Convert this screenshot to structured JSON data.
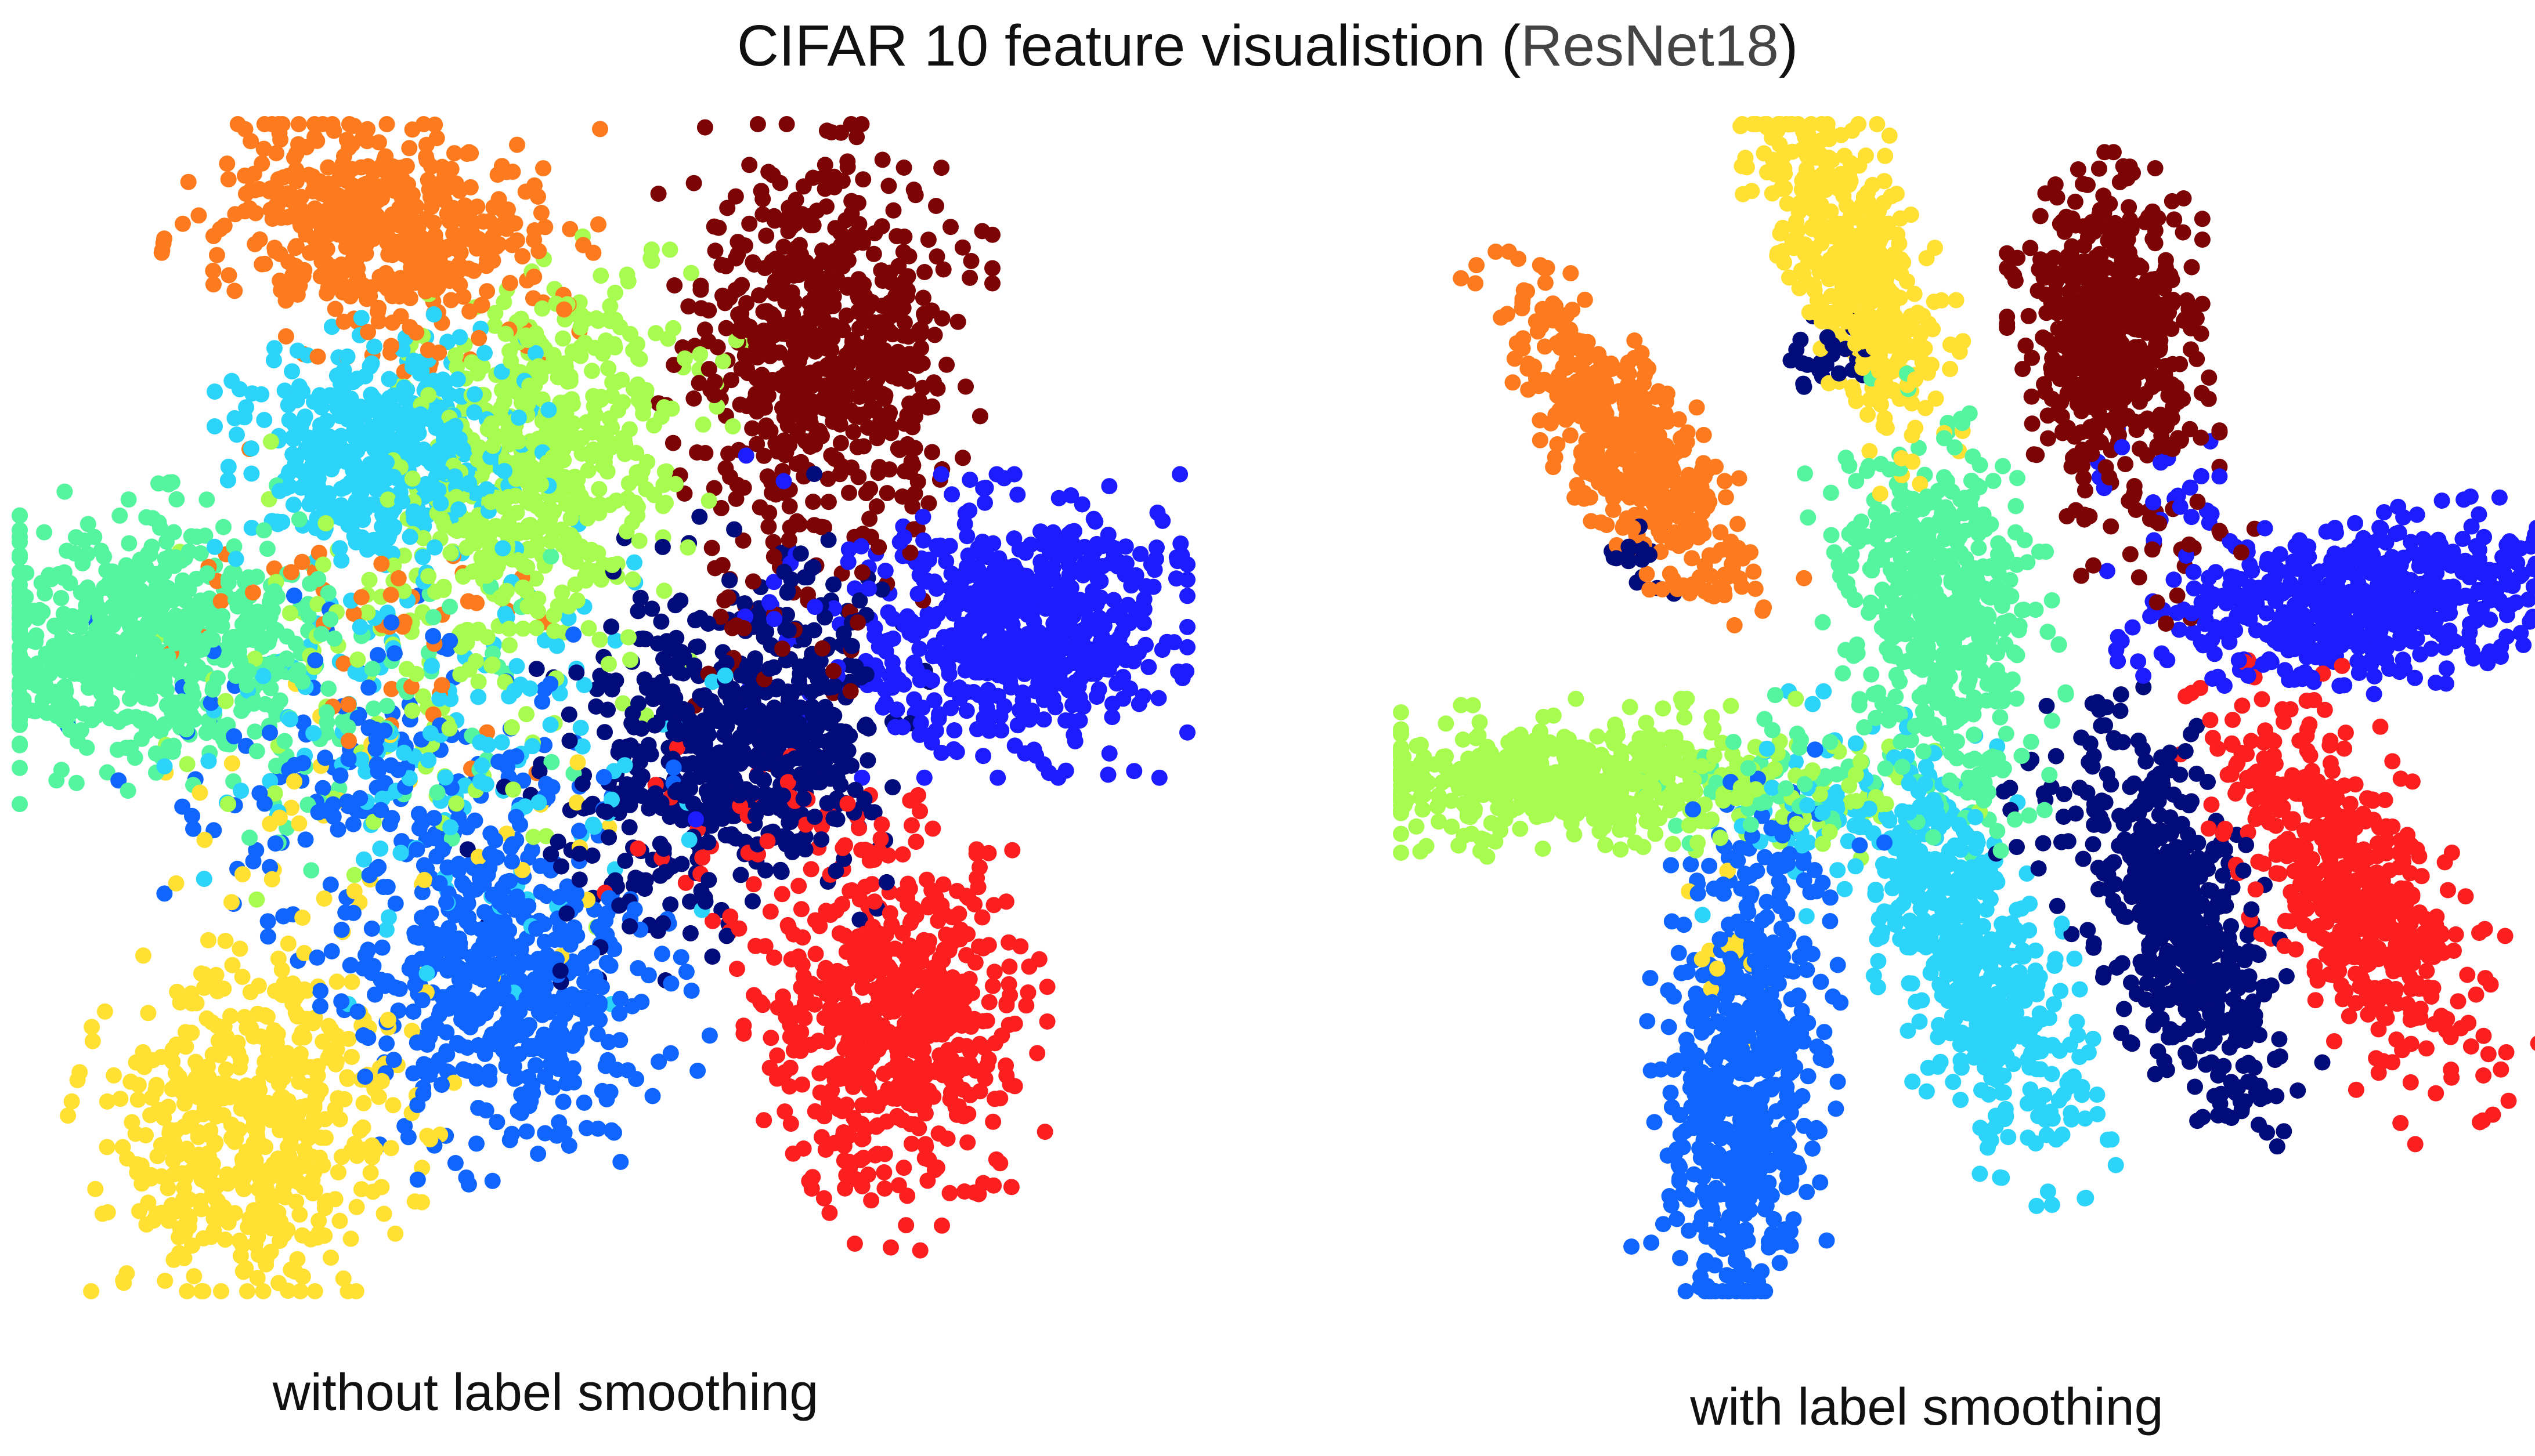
{
  "title": {
    "main": "CIFAR 10 feature visualistion (",
    "sub": "ResNet18",
    "close": ")"
  },
  "chart_data": [
    {
      "type": "scatter",
      "title": "without label smoothing",
      "xlim": [
        0,
        100
      ],
      "ylim": [
        0,
        100
      ],
      "grid": false,
      "legend": "none",
      "colormap": "jet",
      "classes": [
        {
          "id": 0,
          "color": "#020b7a"
        },
        {
          "id": 1,
          "color": "#1c1cff"
        },
        {
          "id": 2,
          "color": "#1065ff"
        },
        {
          "id": 3,
          "color": "#2bd4f8"
        },
        {
          "id": 4,
          "color": "#55f5a0"
        },
        {
          "id": 5,
          "color": "#a8fc50"
        },
        {
          "id": 6,
          "color": "#ffe033"
        },
        {
          "id": 7,
          "color": "#fe7a1e"
        },
        {
          "id": 8,
          "color": "#fc1f1f"
        },
        {
          "id": 9,
          "color": "#7d0404"
        }
      ],
      "clusters": [
        {
          "class": 7,
          "cx": 31,
          "cy": 91,
          "sx": 7,
          "sy": 4.5,
          "rot": -10,
          "n": 520
        },
        {
          "class": 5,
          "cx": 45,
          "cy": 71,
          "sx": 5.5,
          "sy": 8,
          "rot": -20,
          "n": 560
        },
        {
          "class": 3,
          "cx": 31,
          "cy": 72,
          "sx": 5.5,
          "sy": 4.5,
          "rot": 0,
          "n": 480
        },
        {
          "class": 4,
          "cx": 10,
          "cy": 56,
          "sx": 8,
          "sy": 5,
          "rot": 5,
          "n": 620
        },
        {
          "class": 9,
          "cx": 69,
          "cy": 80,
          "sx": 5.5,
          "sy": 8,
          "rot": 0,
          "n": 620
        },
        {
          "class": 1,
          "cx": 85,
          "cy": 57,
          "sx": 6.5,
          "sy": 5,
          "rot": 0,
          "n": 640
        },
        {
          "class": 0,
          "cx": 62,
          "cy": 47,
          "sx": 6,
          "sy": 6.5,
          "rot": -20,
          "n": 560
        },
        {
          "class": 8,
          "cx": 75,
          "cy": 23,
          "sx": 5,
          "sy": 7.5,
          "rot": 0,
          "n": 620
        },
        {
          "class": 2,
          "cx": 41,
          "cy": 26,
          "sx": 6,
          "sy": 7,
          "rot": 20,
          "n": 540
        },
        {
          "class": 6,
          "cx": 20,
          "cy": 14,
          "sx": 6,
          "sy": 7,
          "rot": -15,
          "n": 560
        },
        {
          "class": 3,
          "cx": 36,
          "cy": 48,
          "sx": 11,
          "sy": 9,
          "rot": 0,
          "n": 160
        },
        {
          "class": 2,
          "cx": 30,
          "cy": 44,
          "sx": 10,
          "sy": 6,
          "rot": 0,
          "n": 140
        },
        {
          "class": 5,
          "cx": 34,
          "cy": 52,
          "sx": 9,
          "sy": 8,
          "rot": 0,
          "n": 100
        },
        {
          "class": 4,
          "cx": 28,
          "cy": 50,
          "sx": 9,
          "sy": 6,
          "rot": 0,
          "n": 80
        },
        {
          "class": 7,
          "cx": 30,
          "cy": 58,
          "sx": 8,
          "sy": 6,
          "rot": 0,
          "n": 50
        },
        {
          "class": 6,
          "cx": 30,
          "cy": 38,
          "sx": 9,
          "sy": 6,
          "rot": 0,
          "n": 45
        },
        {
          "class": 0,
          "cx": 52,
          "cy": 40,
          "sx": 7,
          "sy": 7,
          "rot": 0,
          "n": 60
        },
        {
          "class": 9,
          "cx": 66,
          "cy": 60,
          "sx": 4,
          "sy": 6,
          "rot": 0,
          "n": 45
        },
        {
          "class": 8,
          "cx": 63,
          "cy": 37,
          "sx": 5,
          "sy": 5,
          "rot": 0,
          "n": 45
        },
        {
          "class": 1,
          "cx": 67,
          "cy": 56,
          "sx": 4,
          "sy": 6,
          "rot": 0,
          "n": 25
        },
        {
          "class": 0,
          "cx": 68,
          "cy": 57,
          "sx": 3,
          "sy": 6,
          "rot": 0,
          "n": 30
        }
      ]
    },
    {
      "type": "scatter",
      "title": "with label smoothing",
      "xlim": [
        0,
        100
      ],
      "ylim": [
        0,
        100
      ],
      "grid": false,
      "legend": "none",
      "colormap": "jet",
      "classes": [
        {
          "id": 0,
          "color": "#020b7a"
        },
        {
          "id": 1,
          "color": "#1c1cff"
        },
        {
          "id": 2,
          "color": "#1065ff"
        },
        {
          "id": 3,
          "color": "#2bd4f8"
        },
        {
          "id": 4,
          "color": "#55f5a0"
        },
        {
          "id": 5,
          "color": "#a8fc50"
        },
        {
          "id": 6,
          "color": "#ffe033"
        },
        {
          "id": 7,
          "color": "#fe7a1e"
        },
        {
          "id": 8,
          "color": "#fc1f1f"
        },
        {
          "id": 9,
          "color": "#7d0404"
        }
      ],
      "clusters": [
        {
          "class": 6,
          "cx": 39,
          "cy": 88,
          "sx": 2.6,
          "sy": 7.5,
          "rot": 22,
          "n": 480
        },
        {
          "class": 7,
          "cx": 20,
          "cy": 72,
          "sx": 2.5,
          "sy": 8,
          "rot": 35,
          "n": 480
        },
        {
          "class": 9,
          "cx": 61,
          "cy": 82,
          "sx": 3.5,
          "sy": 6,
          "rot": 0,
          "n": 520
        },
        {
          "class": 1,
          "cx": 83,
          "cy": 59,
          "sx": 8.5,
          "sy": 3,
          "rot": 8,
          "n": 560
        },
        {
          "class": 4,
          "cx": 46,
          "cy": 58,
          "sx": 3.8,
          "sy": 8,
          "rot": 8,
          "n": 520
        },
        {
          "class": 5,
          "cx": 14,
          "cy": 44,
          "sx": 10,
          "sy": 2.6,
          "rot": 0,
          "n": 520
        },
        {
          "class": 8,
          "cx": 82,
          "cy": 34,
          "sx": 3.5,
          "sy": 8.5,
          "rot": 30,
          "n": 540
        },
        {
          "class": 0,
          "cx": 67,
          "cy": 31,
          "sx": 3,
          "sy": 8,
          "rot": 18,
          "n": 480
        },
        {
          "class": 3,
          "cx": 49,
          "cy": 28,
          "sx": 3.2,
          "sy": 8.5,
          "rot": 20,
          "n": 520
        },
        {
          "class": 2,
          "cx": 29,
          "cy": 17,
          "sx": 3.2,
          "sy": 10,
          "rot": -4,
          "n": 560
        },
        {
          "class": 3,
          "cx": 38,
          "cy": 41,
          "sx": 6,
          "sy": 4,
          "rot": 0,
          "n": 70
        },
        {
          "class": 4,
          "cx": 34,
          "cy": 44,
          "sx": 5,
          "sy": 3,
          "rot": 0,
          "n": 55
        },
        {
          "class": 2,
          "cx": 31,
          "cy": 36,
          "sx": 4,
          "sy": 5,
          "rot": 0,
          "n": 50
        },
        {
          "class": 5,
          "cx": 38,
          "cy": 43,
          "sx": 5,
          "sy": 3,
          "rot": 0,
          "n": 40
        },
        {
          "class": 9,
          "cx": 64,
          "cy": 65,
          "sx": 3.5,
          "sy": 3,
          "rot": 0,
          "n": 35
        },
        {
          "class": 0,
          "cx": 58,
          "cy": 41,
          "sx": 4,
          "sy": 4,
          "rot": 0,
          "n": 35
        },
        {
          "class": 1,
          "cx": 66,
          "cy": 68,
          "sx": 4,
          "sy": 3,
          "rot": 0,
          "n": 25
        },
        {
          "class": 0,
          "cx": 37,
          "cy": 80,
          "sx": 2,
          "sy": 2,
          "rot": 0,
          "n": 25
        },
        {
          "class": 0,
          "cx": 21,
          "cy": 62,
          "sx": 2,
          "sy": 2,
          "rot": 0,
          "n": 18
        },
        {
          "class": 8,
          "cx": 70,
          "cy": 43,
          "sx": 3,
          "sy": 3,
          "rot": 0,
          "n": 20
        },
        {
          "class": 6,
          "cx": 28,
          "cy": 30,
          "sx": 2,
          "sy": 4,
          "rot": 0,
          "n": 15
        }
      ]
    }
  ]
}
